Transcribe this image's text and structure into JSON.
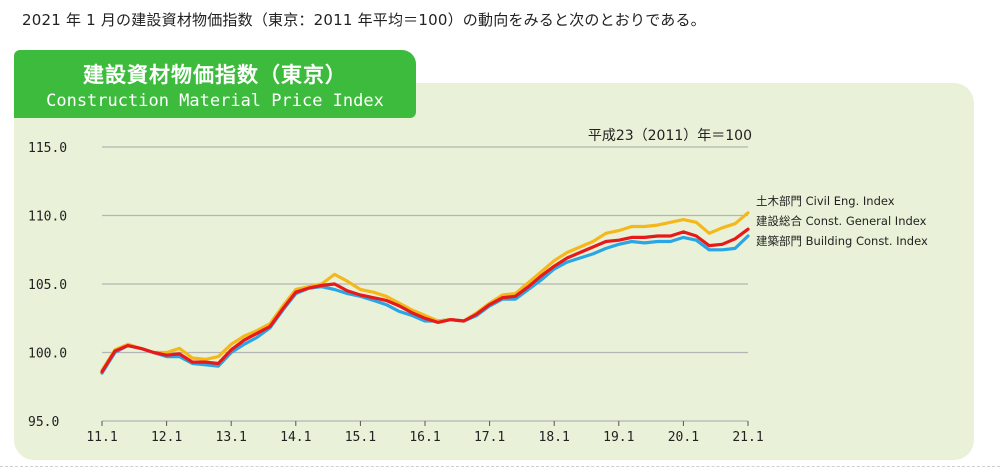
{
  "intro_text": "2021 年 1 月の建設資材物価指数（東京：2011 年平均＝100）の動向をみると次のとおりである。",
  "title_jp": "建設資材物価指数（東京）",
  "title_en": "Construction Material Price Index",
  "colors": {
    "panel_bg": "#e9f2d8",
    "title_bg": "#3dbb3d",
    "grid": "#b4b4b4",
    "civil": "#f5b81b",
    "general": "#e8191b",
    "building": "#2aa6e4"
  },
  "chart_data": {
    "type": "line",
    "unit_label": "平成23（2011）年＝100",
    "y_ticks": [
      "115.0",
      "110.0",
      "105.0",
      "100.0",
      "95.0"
    ],
    "ylim": [
      95,
      115
    ],
    "x_ticks": [
      "11.1",
      "12.1",
      "13.1",
      "14.1",
      "15.1",
      "16.1",
      "17.1",
      "18.1",
      "19.1",
      "20.1",
      "21.1"
    ],
    "x": [
      2011.0,
      2011.2,
      2011.4,
      2011.6,
      2011.8,
      2012.0,
      2012.2,
      2012.4,
      2012.6,
      2012.8,
      2013.0,
      2013.2,
      2013.4,
      2013.6,
      2013.8,
      2014.0,
      2014.2,
      2014.4,
      2014.6,
      2014.8,
      2015.0,
      2015.2,
      2015.4,
      2015.6,
      2015.8,
      2016.0,
      2016.2,
      2016.4,
      2016.6,
      2016.8,
      2017.0,
      2017.2,
      2017.4,
      2017.6,
      2017.8,
      2018.0,
      2018.2,
      2018.4,
      2018.6,
      2018.8,
      2019.0,
      2019.2,
      2019.4,
      2019.6,
      2019.8,
      2020.0,
      2020.2,
      2020.4,
      2020.6,
      2020.8,
      2021.0
    ],
    "series": [
      {
        "name": "土木部門 Civil Eng. Index",
        "color_key": "civil",
        "values": [
          98.7,
          100.2,
          100.6,
          100.3,
          100.0,
          100.0,
          100.3,
          99.6,
          99.5,
          99.7,
          100.6,
          101.2,
          101.6,
          102.1,
          103.4,
          104.6,
          104.8,
          105.0,
          105.7,
          105.2,
          104.6,
          104.4,
          104.1,
          103.6,
          103.1,
          102.7,
          102.3,
          102.4,
          102.3,
          102.9,
          103.6,
          104.2,
          104.3,
          105.1,
          105.9,
          106.7,
          107.3,
          107.7,
          108.1,
          108.7,
          108.9,
          109.2,
          109.2,
          109.3,
          109.5,
          109.7,
          109.5,
          108.7,
          109.1,
          109.4,
          110.2
        ]
      },
      {
        "name": "建設総合 Const. General Index",
        "color_key": "general",
        "values": [
          98.6,
          100.1,
          100.5,
          100.3,
          100.0,
          99.8,
          99.9,
          99.3,
          99.3,
          99.2,
          100.2,
          100.9,
          101.4,
          101.9,
          103.2,
          104.4,
          104.7,
          104.9,
          105.0,
          104.5,
          104.2,
          104.0,
          103.8,
          103.4,
          102.9,
          102.5,
          102.2,
          102.4,
          102.3,
          102.8,
          103.5,
          104.0,
          104.1,
          104.8,
          105.6,
          106.3,
          106.9,
          107.3,
          107.7,
          108.1,
          108.2,
          108.4,
          108.4,
          108.5,
          108.5,
          108.8,
          108.5,
          107.8,
          107.9,
          108.3,
          109.0
        ]
      },
      {
        "name": "建築部門 Building Const. Index",
        "color_key": "building",
        "values": [
          98.5,
          100.0,
          100.5,
          100.3,
          100.0,
          99.7,
          99.7,
          99.2,
          99.1,
          99.0,
          100.0,
          100.6,
          101.1,
          101.8,
          103.1,
          104.3,
          104.7,
          104.8,
          104.6,
          104.3,
          104.1,
          103.8,
          103.5,
          103.0,
          102.7,
          102.3,
          102.3,
          102.4,
          102.3,
          102.7,
          103.4,
          103.9,
          103.9,
          104.6,
          105.3,
          106.1,
          106.6,
          106.9,
          107.2,
          107.6,
          107.9,
          108.1,
          108.0,
          108.1,
          108.1,
          108.4,
          108.2,
          107.5,
          107.5,
          107.6,
          108.5
        ]
      }
    ]
  }
}
